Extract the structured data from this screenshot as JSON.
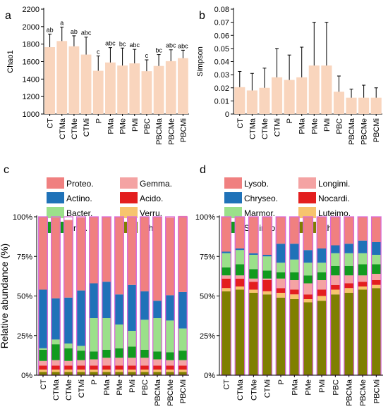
{
  "panels": {
    "a": "a",
    "b": "b",
    "c": "c",
    "d": "d"
  },
  "chart_data": [
    {
      "type": "bar",
      "panel": "a",
      "categories": [
        "CT",
        "CTMa",
        "CTMe",
        "CTMi",
        "P",
        "PMa",
        "PMe",
        "PMi",
        "PBC",
        "PBCMa",
        "PBCMe",
        "PBCMi"
      ],
      "values": [
        1765,
        1835,
        1775,
        1680,
        1495,
        1590,
        1555,
        1580,
        1490,
        1550,
        1605,
        1640
      ],
      "errors": [
        150,
        160,
        120,
        200,
        170,
        170,
        200,
        160,
        130,
        130,
        130,
        90
      ],
      "significance": [
        "ab",
        "a",
        "ab",
        "abc",
        "c",
        "abc",
        "bc",
        "abc",
        "c",
        "bc",
        "abc",
        "abc"
      ],
      "ylabel": "Chao1",
      "ylim": [
        1000,
        2200
      ],
      "yticks": [
        1000,
        1200,
        1400,
        1600,
        1800,
        2000,
        2200
      ],
      "bar_color": "#f9d5bd"
    },
    {
      "type": "bar",
      "panel": "b",
      "categories": [
        "CT",
        "CTMa",
        "CTMe",
        "CTMi",
        "P",
        "PMa",
        "PMe",
        "PMi",
        "PBC",
        "PBCMa",
        "PBCMe",
        "PBCMi"
      ],
      "values": [
        0.0205,
        0.018,
        0.02,
        0.028,
        0.026,
        0.028,
        0.037,
        0.037,
        0.017,
        0.0125,
        0.0125,
        0.0125
      ],
      "errors": [
        0.012,
        0.013,
        0.015,
        0.022,
        0.019,
        0.023,
        0.033,
        0.033,
        0.012,
        0.0065,
        0.0095,
        0.0075
      ],
      "ylabel": "Simpson",
      "ylim": [
        0,
        0.08
      ],
      "yticks": [
        0,
        0.01,
        0.02,
        0.03,
        0.04,
        0.05,
        0.06,
        0.07,
        0.08
      ],
      "bar_color": "#f9d5bd"
    },
    {
      "type": "stacked_bar",
      "panel": "c",
      "categories": [
        "CT",
        "CTMa",
        "CTMe",
        "CTMi",
        "P",
        "PMa",
        "PMe",
        "PMi",
        "PBC",
        "PBCMa",
        "PBCMe",
        "PBCMi"
      ],
      "ylabel": "Relative abundance (%)",
      "yticks": [
        "0%",
        "25%",
        "50%",
        "75%",
        "100%"
      ],
      "ylim": [
        0,
        100
      ],
      "legend": [
        {
          "name": "Proteo.",
          "color": "#f08080"
        },
        {
          "name": "Gemma.",
          "color": "#f4a3a3"
        },
        {
          "name": "Actino.",
          "color": "#1f72b8"
        },
        {
          "name": "Acido.",
          "color": "#e31e1e"
        },
        {
          "name": "Bacter.",
          "color": "#9be08a"
        },
        {
          "name": "Verru.",
          "color": "#f7c46e"
        },
        {
          "name": "Firmi.",
          "color": "#119b1e"
        },
        {
          "name": "Other",
          "color": "#7f7f00"
        }
      ],
      "series": [
        {
          "name": "Other",
          "color": "#7f7f00",
          "values": [
            2,
            2,
            2,
            2,
            2,
            2,
            2,
            2,
            2,
            2,
            2,
            2
          ]
        },
        {
          "name": "Verru.",
          "color": "#f7c46e",
          "values": [
            1.5,
            1.5,
            1.5,
            1.5,
            1.5,
            1.5,
            1.5,
            1.5,
            1.5,
            1.5,
            1.5,
            1.5
          ]
        },
        {
          "name": "Acido.",
          "color": "#e31e1e",
          "values": [
            2.5,
            2.5,
            2.5,
            2.5,
            2.5,
            2.5,
            2.5,
            2.5,
            2.5,
            2.5,
            2.5,
            2.5
          ]
        },
        {
          "name": "Gemma.",
          "color": "#f4a3a3",
          "values": [
            3,
            3.5,
            3,
            3.5,
            4,
            5,
            5,
            5,
            5,
            4,
            3.5,
            3.5
          ]
        },
        {
          "name": "Firmi.",
          "color": "#119b1e",
          "values": [
            7,
            10,
            8,
            6,
            5,
            5,
            6,
            7,
            5,
            5,
            5,
            6
          ]
        },
        {
          "name": "Bacter.",
          "color": "#9be08a",
          "values": [
            1,
            3,
            3,
            3,
            21,
            20,
            15,
            10,
            19,
            21,
            20,
            14
          ]
        },
        {
          "name": "Actino.",
          "color": "#1f72b8",
          "values": [
            37,
            26,
            29,
            35,
            22,
            23,
            19,
            29,
            18,
            11,
            16,
            23
          ]
        },
        {
          "name": "Proteo.",
          "color": "#f08080",
          "values": [
            46,
            51,
            49,
            46,
            42,
            41,
            49,
            43,
            47,
            53,
            49,
            48
          ]
        }
      ]
    },
    {
      "type": "stacked_bar",
      "panel": "d",
      "categories": [
        "CT",
        "CTMa",
        "CTMe",
        "CTMi",
        "P",
        "PMa",
        "PMe",
        "PMi",
        "PBC",
        "PBCMa",
        "PBCMe",
        "PBCMi"
      ],
      "ylabel": "",
      "yticks": [
        "0%",
        "25%",
        "50%",
        "75%",
        "100%"
      ],
      "ylim": [
        0,
        100
      ],
      "legend": [
        {
          "name": "Lysob.",
          "color": "#f08080"
        },
        {
          "name": "Longimi.",
          "color": "#f4a3a3"
        },
        {
          "name": "Chryseo.",
          "color": "#1f72b8"
        },
        {
          "name": "Nocardi.",
          "color": "#e31e1e"
        },
        {
          "name": "Marmor.",
          "color": "#9be08a"
        },
        {
          "name": "Luteimo.",
          "color": "#f7c46e"
        },
        {
          "name": "Sphingo.",
          "color": "#119b1e"
        },
        {
          "name": "Other",
          "color": "#7f7f00"
        }
      ],
      "series": [
        {
          "name": "Other",
          "color": "#7f7f00",
          "values": [
            53,
            54,
            52,
            51,
            49,
            48,
            46,
            47,
            51,
            52,
            54,
            55
          ]
        },
        {
          "name": "Luteimo.",
          "color": "#f7c46e",
          "values": [
            2,
            2,
            2,
            2,
            3,
            3,
            2,
            3,
            3,
            3,
            2,
            2
          ]
        },
        {
          "name": "Nocardi.",
          "color": "#e31e1e",
          "values": [
            6,
            5,
            5,
            7,
            3,
            3,
            3,
            4,
            3,
            3,
            3,
            3
          ]
        },
        {
          "name": "Longimi.",
          "color": "#f4a3a3",
          "values": [
            2,
            2,
            2,
            1,
            6,
            6,
            7,
            6,
            6,
            5,
            4,
            4
          ]
        },
        {
          "name": "Sphingo.",
          "color": "#119b1e",
          "values": [
            5,
            7,
            6,
            5,
            4,
            5,
            5,
            5,
            6,
            6,
            7,
            6
          ]
        },
        {
          "name": "Marmor.",
          "color": "#9be08a",
          "values": [
            9,
            9,
            9,
            9,
            6,
            8,
            8,
            6,
            8,
            8,
            7,
            6
          ]
        },
        {
          "name": "Chryseo.",
          "color": "#1f72b8",
          "values": [
            1,
            1,
            1,
            1,
            12,
            10,
            8,
            9,
            5,
            6,
            8,
            8
          ]
        },
        {
          "name": "Lysob.",
          "color": "#f08080",
          "values": [
            22,
            20,
            23,
            24,
            17,
            17,
            21,
            20,
            18,
            17,
            15,
            16
          ]
        }
      ]
    }
  ]
}
